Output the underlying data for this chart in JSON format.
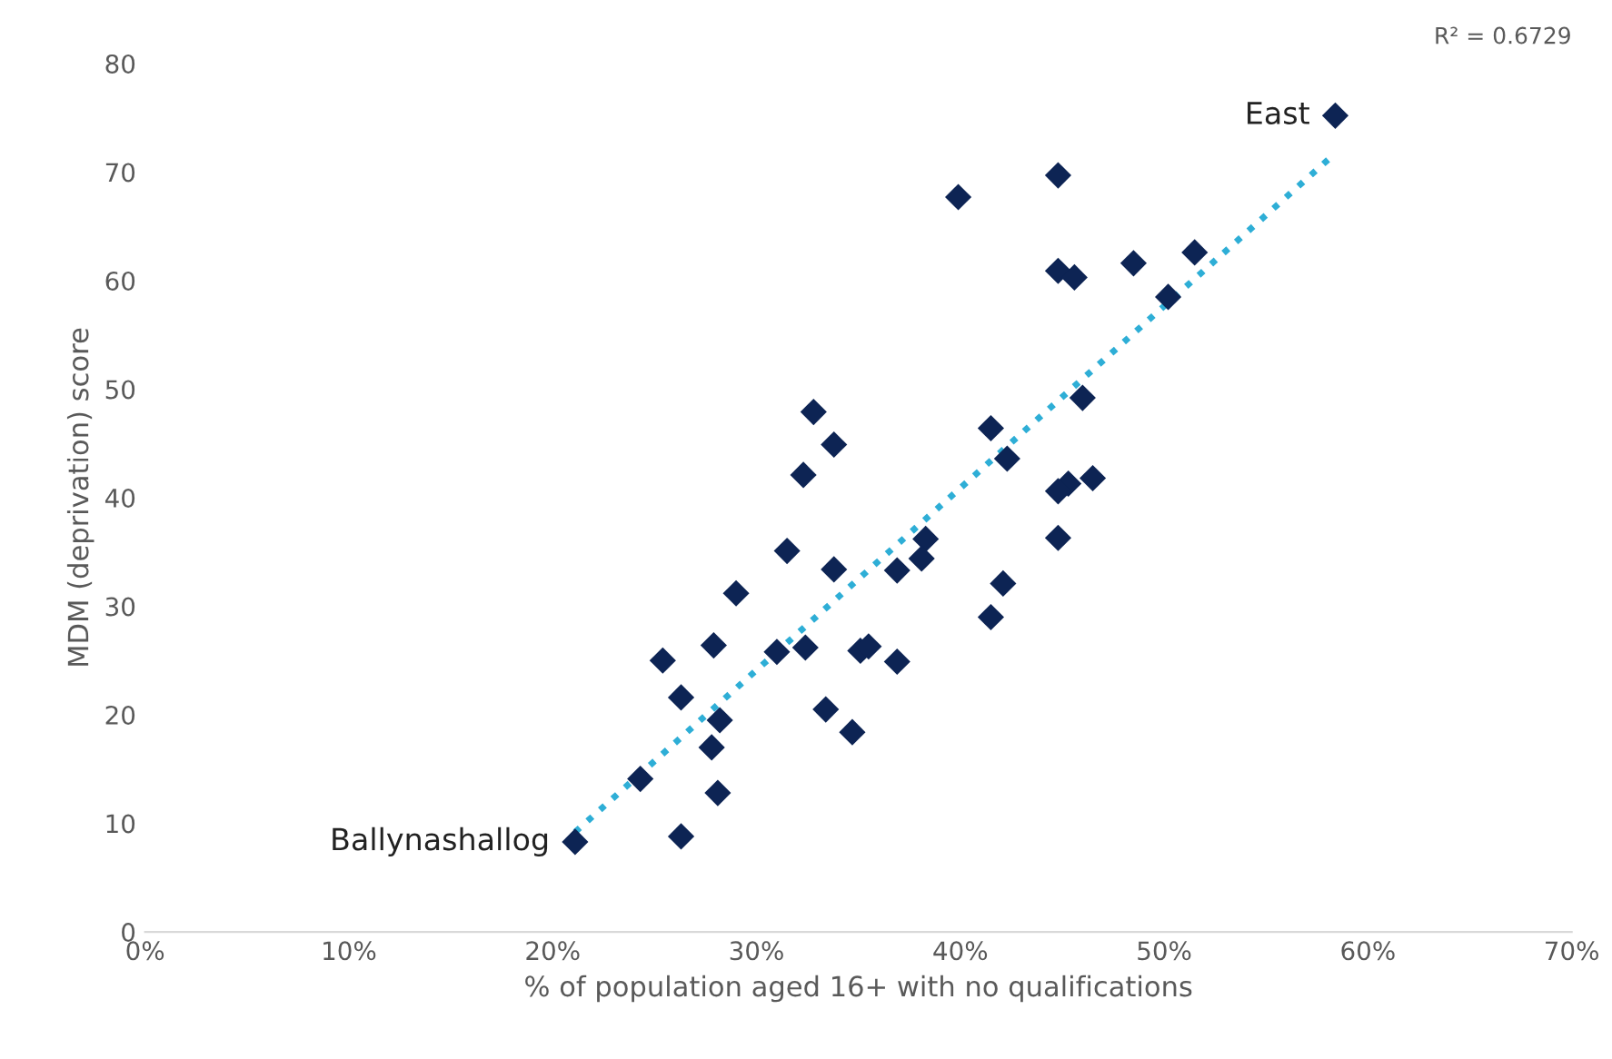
{
  "chart_data": {
    "type": "scatter",
    "xlabel": "% of population aged 16+ with no qualifications",
    "ylabel": "MDM (deprivation) score",
    "xlim": [
      0,
      70
    ],
    "ylim": [
      0,
      80
    ],
    "xticks": [
      {
        "value": 0,
        "label": "0%"
      },
      {
        "value": 10,
        "label": "10%"
      },
      {
        "value": 20,
        "label": "20%"
      },
      {
        "value": 30,
        "label": "30%"
      },
      {
        "value": 40,
        "label": "40%"
      },
      {
        "value": 50,
        "label": "50%"
      },
      {
        "value": 60,
        "label": "60%"
      },
      {
        "value": 70,
        "label": "70%"
      }
    ],
    "yticks": [
      0,
      10,
      20,
      30,
      40,
      50,
      60,
      70,
      80
    ],
    "grid": false,
    "legend": false,
    "marker": "diamond",
    "series": [
      {
        "color": "#0d2454",
        "x": [
          32.8,
          33.8,
          32.3,
          41.5,
          42.3,
          31.5,
          38.3,
          38.1,
          33.8,
          36.9,
          42.1,
          41.5,
          29.0,
          25.4,
          27.9,
          31.0,
          32.4,
          35.1,
          35.5,
          36.9,
          26.3,
          28.2,
          27.8,
          33.4,
          34.7,
          24.3,
          28.1,
          26.3,
          21.1,
          58.4,
          44.8,
          39.9,
          44.8,
          45.6,
          48.5,
          51.5,
          50.2,
          46.0,
          46.5,
          45.3,
          44.8,
          44.8
        ],
        "values": [
          47.9,
          44.9,
          42.1,
          46.4,
          43.6,
          35.1,
          36.2,
          34.4,
          33.4,
          33.3,
          32.1,
          29.0,
          31.2,
          25.0,
          26.4,
          25.8,
          26.2,
          25.9,
          26.3,
          24.9,
          21.6,
          19.5,
          17.0,
          20.5,
          18.4,
          14.1,
          12.8,
          8.8,
          8.3,
          75.2,
          69.7,
          67.7,
          60.9,
          60.3,
          61.6,
          62.6,
          58.5,
          49.2,
          41.8,
          41.3,
          40.6,
          36.3
        ]
      },
      {
        "type": "line",
        "color": "#2eaed6",
        "line_style": "dotted",
        "marker": "none",
        "x": [
          21.1,
          58.2
        ],
        "values": [
          9.2,
          71.4
        ]
      }
    ],
    "annotations": [
      {
        "text": "Ballynashallog",
        "x": 21.1,
        "y": 8.3
      },
      {
        "text": "East",
        "x": 58.4,
        "y": 75.2
      },
      "R² = 0.6729"
    ]
  }
}
